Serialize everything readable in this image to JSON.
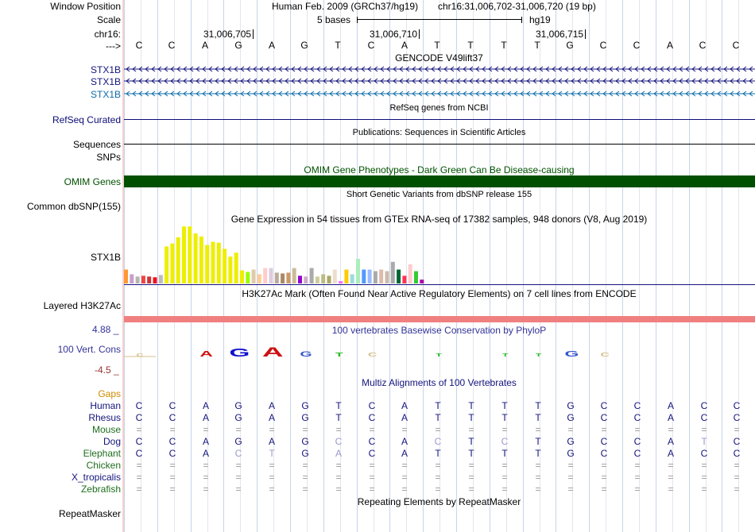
{
  "header": {
    "window_position_label": "Window Position",
    "scale_label": "Scale",
    "chrom_label": "chr16:",
    "strand_label": "--->",
    "assembly": "Human Feb. 2009 (GRCh37/hg19)",
    "position": "chr16:31,006,702-31,006,720 (19 bp)",
    "scale_text": "5 bases",
    "scale_db": "hg19",
    "ticks": [
      "31,006,705",
      "31,006,710",
      "31,006,715"
    ],
    "bases": [
      "C",
      "C",
      "A",
      "G",
      "A",
      "G",
      "T",
      "C",
      "A",
      "T",
      "T",
      "T",
      "T",
      "G",
      "C",
      "C",
      "A",
      "C",
      "C"
    ]
  },
  "gencode": {
    "title": "GENCODE V49lift37",
    "tracks": [
      {
        "label": "STX1B",
        "color": "#14147d"
      },
      {
        "label": "STX1B",
        "color": "#14147d"
      },
      {
        "label": "STX1B",
        "color": "#0c6ca8"
      }
    ]
  },
  "refseq": {
    "title": "RefSeq genes from NCBI",
    "label": "RefSeq Curated",
    "color": "#0c0c78"
  },
  "publications": {
    "title": "Publications: Sequences in Scientific Articles",
    "label": "Sequences"
  },
  "snps": {
    "label": "SNPs"
  },
  "omim": {
    "title": "OMIM Gene Phenotypes - Dark Green Can Be Disease-causing",
    "label": "OMIM Genes",
    "color": "#005000"
  },
  "dbsnp": {
    "title": "Short Genetic Variants from dbSNP release 155",
    "label": "Common dbSNP(155)"
  },
  "gtex": {
    "title": "Gene Expression in 54 tissues from GTEx RNA-seq of 17382 samples, 948 donors (V8, Aug 2019)",
    "label": "STX1B",
    "bars": [
      {
        "v": 18,
        "c": "#ff9933"
      },
      {
        "v": 12,
        "c": "#c8a0c8"
      },
      {
        "v": 9,
        "c": "#b4b4b4"
      },
      {
        "v": 10,
        "c": "#ee4444"
      },
      {
        "v": 9,
        "c": "#cc3333"
      },
      {
        "v": 8,
        "c": "#ee1122"
      },
      {
        "v": 11,
        "c": "#bbbbbb"
      },
      {
        "v": 48,
        "c": "#eeee00"
      },
      {
        "v": 52,
        "c": "#eeee00"
      },
      {
        "v": 60,
        "c": "#eeee00"
      },
      {
        "v": 74,
        "c": "#eeee00"
      },
      {
        "v": 74,
        "c": "#eeee00"
      },
      {
        "v": 65,
        "c": "#eeee00"
      },
      {
        "v": 61,
        "c": "#eeee00"
      },
      {
        "v": 50,
        "c": "#eeee00"
      },
      {
        "v": 54,
        "c": "#eeee00"
      },
      {
        "v": 53,
        "c": "#eeee00"
      },
      {
        "v": 45,
        "c": "#eeee00"
      },
      {
        "v": 35,
        "c": "#eeee00"
      },
      {
        "v": 40,
        "c": "#eeee00"
      },
      {
        "v": 17,
        "c": "#eeee00"
      },
      {
        "v": 15,
        "c": "#99ff00"
      },
      {
        "v": 18,
        "c": "#ddccaa"
      },
      {
        "v": 12,
        "c": "#ffcc99"
      },
      {
        "v": 20,
        "c": "#ffcccc"
      },
      {
        "v": 20,
        "c": "#ddccdd"
      },
      {
        "v": 14,
        "c": "#bbaa99"
      },
      {
        "v": 13,
        "c": "#aa8866"
      },
      {
        "v": 14,
        "c": "#cc9966"
      },
      {
        "v": 20,
        "c": "#ccbb99"
      },
      {
        "v": 10,
        "c": "#9900cc"
      },
      {
        "v": 9,
        "c": "#ccaacc"
      },
      {
        "v": 20,
        "c": "#aaaaaa"
      },
      {
        "v": 9,
        "c": "#cccc99"
      },
      {
        "v": 12,
        "c": "#bbbb88"
      },
      {
        "v": 10,
        "c": "#aaaa66"
      },
      {
        "v": 18,
        "c": "#eeddcc"
      },
      {
        "v": 3,
        "c": "#ff66ff"
      },
      {
        "v": 18,
        "c": "#ffcc00"
      },
      {
        "v": 12,
        "c": "#99dddd"
      },
      {
        "v": 32,
        "c": "#aaeebb"
      },
      {
        "v": 18,
        "c": "#5599ff"
      },
      {
        "v": 18,
        "c": "#99bbff"
      },
      {
        "v": 16,
        "c": "#aaaaaa"
      },
      {
        "v": 18,
        "c": "#ddbbaa"
      },
      {
        "v": 16,
        "c": "#ccbbaa"
      },
      {
        "v": 28,
        "c": "#aaaaaa"
      },
      {
        "v": 18,
        "c": "#006633"
      },
      {
        "v": 10,
        "c": "#ff3355"
      },
      {
        "v": 25,
        "c": "#ffcccc"
      },
      {
        "v": 16,
        "c": "#33cc33"
      },
      {
        "v": 5,
        "c": "#aa00aa"
      }
    ]
  },
  "h3k27ac": {
    "title": "H3K27Ac Mark (Often Found Near Active Regulatory Elements) on 7 cell lines from ENCODE",
    "label": "Layered H3K27Ac",
    "color": "#f08080"
  },
  "conservation": {
    "title": "100 vertebrates Basewise Conservation by PhyloP",
    "label": "100 Vert. Cons",
    "max": "4.88 _",
    "min": "-4.5 _",
    "logo": [
      {
        "i": 0,
        "t": "C",
        "c": "#d4c088",
        "s": 1
      },
      {
        "i": 2,
        "t": "A",
        "c": "#cc1111",
        "s": 4
      },
      {
        "i": 3,
        "t": "G",
        "c": "#1111cc",
        "s": 7
      },
      {
        "i": 4,
        "t": "A",
        "c": "#cc1111",
        "s": 8
      },
      {
        "i": 5,
        "t": "G",
        "c": "#3355cc",
        "s": 3
      },
      {
        "i": 6,
        "t": "T",
        "c": "#22bb22",
        "s": 2
      },
      {
        "i": 7,
        "t": "C",
        "c": "#d4c088",
        "s": 2
      },
      {
        "i": 9,
        "t": "T",
        "c": "#22bb22",
        "s": 1
      },
      {
        "i": 11,
        "t": "T",
        "c": "#22bb22",
        "s": 1
      },
      {
        "i": 12,
        "t": "T",
        "c": "#22bb22",
        "s": 1
      },
      {
        "i": 13,
        "t": "G",
        "c": "#3355cc",
        "s": 4
      },
      {
        "i": 14,
        "t": "C",
        "c": "#d4c088",
        "s": 2
      }
    ]
  },
  "multiz": {
    "title": "Multiz Alignments of 100 Vertebrates",
    "gaps_label": "Gaps",
    "species": [
      {
        "name": "Human",
        "color": "#14147d",
        "seq": [
          "C",
          "C",
          "A",
          "G",
          "A",
          "G",
          "T",
          "C",
          "A",
          "T",
          "T",
          "T",
          "T",
          "G",
          "C",
          "C",
          "A",
          "C",
          "C"
        ]
      },
      {
        "name": "Rhesus",
        "color": "#14147d",
        "seq": [
          "C",
          "C",
          "A",
          "G",
          "A",
          "G",
          "T",
          "C",
          "A",
          "T",
          "T",
          "T",
          "T",
          "G",
          "C",
          "C",
          "A",
          "C",
          "C"
        ]
      },
      {
        "name": "Mouse",
        "color": "#1e6e1e",
        "seq": [
          "=",
          "=",
          "=",
          "=",
          "=",
          "=",
          "=",
          "=",
          "=",
          "=",
          "=",
          "=",
          "=",
          "=",
          "=",
          "=",
          "=",
          "=",
          "="
        ]
      },
      {
        "name": "Dog",
        "color": "#14147d",
        "seq": [
          "C",
          "C",
          "A",
          "G",
          "A",
          "G",
          "C",
          "C",
          "A",
          "C",
          "T",
          "C",
          "T",
          "G",
          "C",
          "C",
          "A",
          "T",
          "C"
        ]
      },
      {
        "name": "Elephant",
        "color": "#1e6e1e",
        "seq": [
          "C",
          "C",
          "A",
          "C",
          "T",
          "G",
          "A",
          "C",
          "A",
          "T",
          "T",
          "T",
          "T",
          "G",
          "C",
          "C",
          "A",
          "C",
          "C"
        ]
      },
      {
        "name": "Chicken",
        "color": "#1e6e1e",
        "seq": [
          "=",
          "=",
          "=",
          "=",
          "=",
          "=",
          "=",
          "=",
          "=",
          "=",
          "=",
          "=",
          "=",
          "=",
          "=",
          "=",
          "=",
          "=",
          "="
        ]
      },
      {
        "name": "X_tropicalis",
        "color": "#14147d",
        "seq": [
          "=",
          "=",
          "=",
          "=",
          "=",
          "=",
          "=",
          "=",
          "=",
          "=",
          "=",
          "=",
          "=",
          "=",
          "=",
          "=",
          "=",
          "=",
          "="
        ]
      },
      {
        "name": "Zebrafish",
        "color": "#1e6e1e",
        "seq": [
          "=",
          "=",
          "=",
          "=",
          "=",
          "=",
          "=",
          "=",
          "=",
          "=",
          "=",
          "=",
          "=",
          "=",
          "=",
          "=",
          "=",
          "=",
          "="
        ]
      }
    ]
  },
  "repeatmasker": {
    "title": "Repeating Elements by RepeatMasker",
    "label": "RepeatMasker"
  }
}
